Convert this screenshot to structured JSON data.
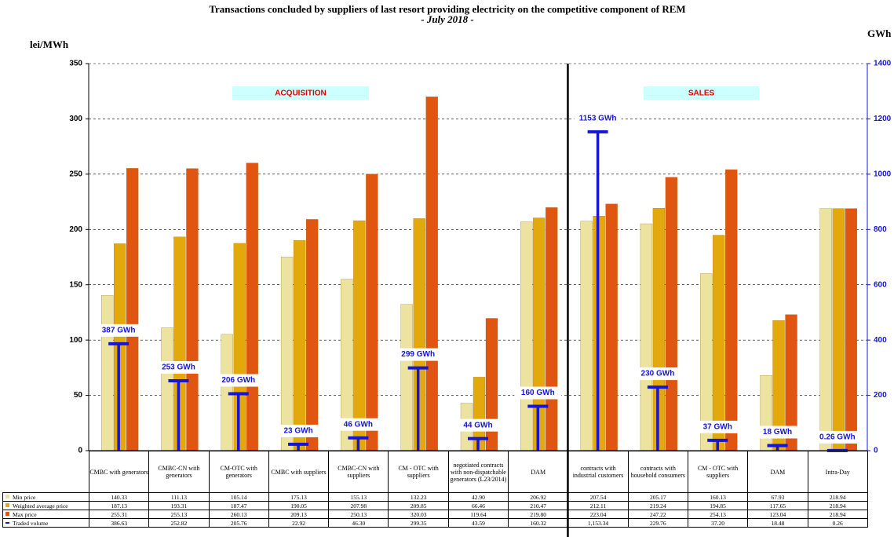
{
  "chart_data": {
    "type": "bar",
    "title": "Transactions concluded by suppliers of last resort providing  electricity on the competitive component of REM",
    "subtitle": "- July 2018 -",
    "y_label": "lei/MWh",
    "y2_label": "GWh",
    "annotations": [
      "ACQUISITION",
      "SALES"
    ],
    "categories": [
      "CMBC with generators",
      "CMBC-CN with generators",
      "CM-OTC with generators",
      "CMBC with suppliers",
      "CMBC-CN with suppliers",
      "CM - OTC with suppliers",
      "negotiated contracts with non-dispatchable generators (L23/2014)",
      "DAM",
      "contracts with industrial customers",
      "contracts with household consumers",
      "CM - OTC with suppliers",
      "DAM",
      "Intra-Day"
    ],
    "series": [
      {
        "name": "Min price",
        "color": "#ece3a0",
        "values": [
          140.33,
          111.13,
          105.14,
          175.13,
          155.13,
          132.23,
          42.9,
          206.92,
          207.54,
          205.17,
          160.13,
          67.93,
          218.94
        ],
        "table_labels": [
          "140.33",
          "111.13",
          "105.14",
          "175.13",
          "155.13",
          "132.23",
          "42.90",
          "206.92",
          "207.54",
          "205.17",
          "160.13",
          "67.93",
          "218.94"
        ]
      },
      {
        "name": "Weighted average price",
        "color": "#e2a80c",
        "values": [
          187.13,
          193.31,
          187.47,
          190.05,
          207.98,
          209.85,
          66.46,
          210.47,
          212.11,
          219.24,
          194.85,
          117.65,
          218.94
        ],
        "table_labels": [
          "187.13",
          "193.31",
          "187.47",
          "190.05",
          "207.98",
          "209.85",
          "66.46",
          "210.47",
          "212.11",
          "219.24",
          "194.85",
          "117.65",
          "218.94"
        ]
      },
      {
        "name": "Max price",
        "color": "#e0550f",
        "values": [
          255.31,
          255.13,
          260.13,
          209.13,
          250.13,
          320.03,
          119.64,
          219.8,
          223.04,
          247.22,
          254.13,
          123.04,
          218.94
        ],
        "table_labels": [
          "255.31",
          "255.13",
          "260.13",
          "209.13",
          "250.13",
          "320.03",
          "119.64",
          "219.80",
          "223.04",
          "247.22",
          "254.13",
          "123.04",
          "218.94"
        ]
      },
      {
        "name": "Traded volume",
        "color": "#1515d6",
        "axis": "y2",
        "values": [
          386.63,
          252.82,
          205.76,
          22.92,
          46.3,
          299.35,
          43.59,
          160.32,
          1153.34,
          229.76,
          37.2,
          18.48,
          0.26
        ],
        "table_labels": [
          "386.63",
          "252.82",
          "205.76",
          "22.92",
          "46.30",
          "299.35",
          "43.59",
          "160.32",
          "1,153.34",
          "229.76",
          "37.20",
          "18.48",
          "0.26"
        ],
        "value_labels": [
          "387 GWh",
          "253 GWh",
          "206 GWh",
          "23 GWh",
          "46 GWh",
          "299 GWh",
          "44 GWh",
          "160 GWh",
          "1153 GWh",
          "230 GWh",
          "37 GWh",
          "18 GWh",
          "0.26 GWh"
        ]
      }
    ],
    "ylim": [
      0,
      350
    ],
    "yticks": [
      0,
      50,
      100,
      150,
      200,
      250,
      300,
      350
    ],
    "y2lim": [
      0,
      1400
    ],
    "y2ticks": [
      0,
      200,
      400,
      600,
      800,
      1000,
      1200,
      1400
    ],
    "grid": true
  }
}
